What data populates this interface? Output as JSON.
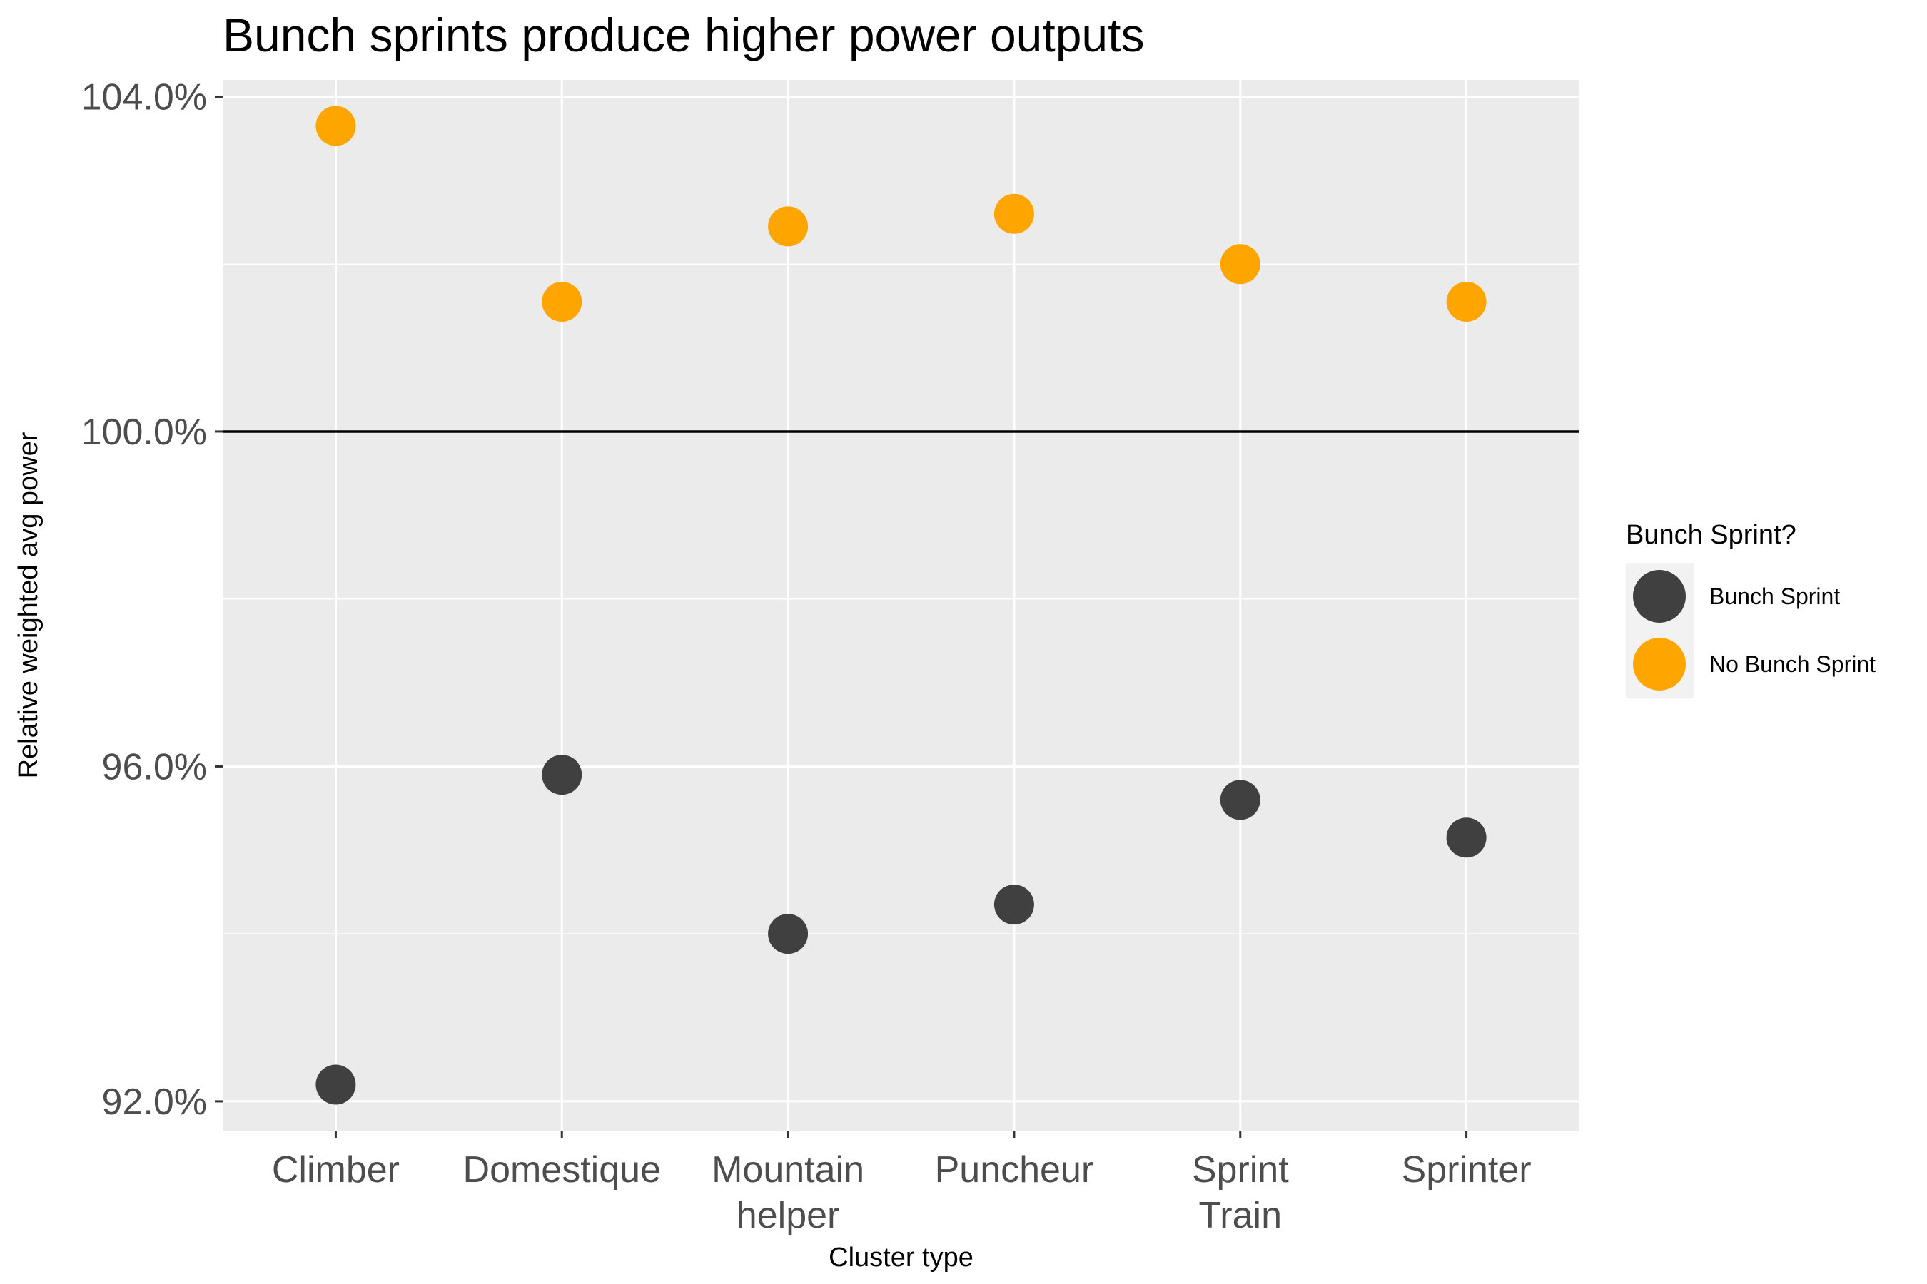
{
  "chart_data": {
    "type": "scatter",
    "title": "Bunch sprints produce higher power outputs",
    "xlabel": "Cluster type",
    "ylabel": "Relative weighted avg power",
    "categories": [
      "Climber",
      "Domestique",
      "Mountain\nhelper",
      "Puncheur",
      "Sprint\nTrain",
      "Sprinter"
    ],
    "y_ticks": [
      92,
      96,
      100,
      104
    ],
    "y_tick_labels": [
      "92.0%",
      "96.0%",
      "100.0%",
      "104.0%"
    ],
    "ylim": [
      91.65,
      104.2
    ],
    "reference_line_y": 100,
    "grid": true,
    "legend": {
      "title": "Bunch Sprint?",
      "position": "right"
    },
    "series": [
      {
        "name": "Bunch Sprint",
        "color": "#404040",
        "values": [
          92.2,
          95.9,
          94.0,
          94.35,
          95.6,
          95.15
        ]
      },
      {
        "name": "No Bunch Sprint",
        "color": "#FFA500",
        "values": [
          103.65,
          101.55,
          102.45,
          102.6,
          102.0,
          101.55
        ]
      }
    ]
  }
}
